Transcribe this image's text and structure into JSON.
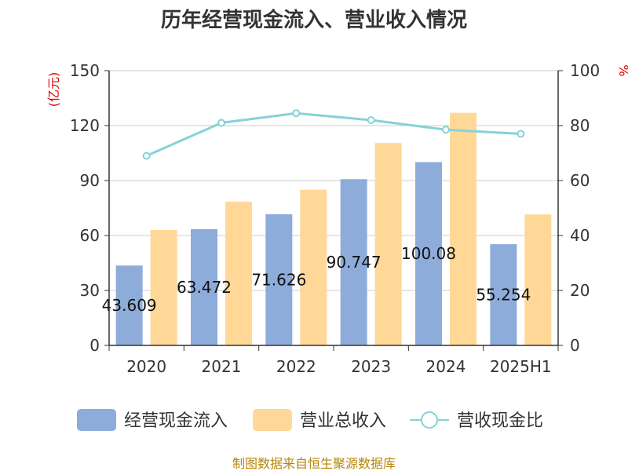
{
  "chart_data": {
    "type": "bar",
    "title": "历年经营现金流入、营业收入情况",
    "categories": [
      "2020",
      "2021",
      "2022",
      "2023",
      "2024",
      "2025H1"
    ],
    "left_axis": {
      "unit": "(亿元)",
      "min": 0,
      "max": 150,
      "ticks": [
        "0",
        "30",
        "60",
        "90",
        "120",
        "150"
      ]
    },
    "right_axis": {
      "unit": "%",
      "min": 0,
      "max": 100,
      "ticks": [
        "0",
        "20",
        "40",
        "60",
        "80",
        "100"
      ]
    },
    "series": [
      {
        "name": "经营现金流入",
        "type": "bar",
        "axis": "left",
        "values": [
          43.609,
          63.472,
          71.626,
          90.747,
          100.08,
          55.254
        ],
        "labels": [
          "43.609",
          "63.472",
          "71.626",
          "90.747",
          "100.08",
          "55.254"
        ]
      },
      {
        "name": "营业总收入",
        "type": "bar",
        "axis": "left",
        "values": [
          63.0,
          78.5,
          85.0,
          110.5,
          127.0,
          71.5
        ]
      },
      {
        "name": "营收现金比",
        "type": "line",
        "axis": "right",
        "values": [
          69.0,
          81.0,
          84.5,
          82.0,
          78.5,
          77.0
        ]
      }
    ],
    "grid": true,
    "legend": "bottom",
    "colors": {
      "cash": "#8eacd9",
      "revenue": "#ffd898",
      "ratio": "#85d2d8"
    }
  },
  "source_text": "制图数据来自恒生聚源数据库"
}
